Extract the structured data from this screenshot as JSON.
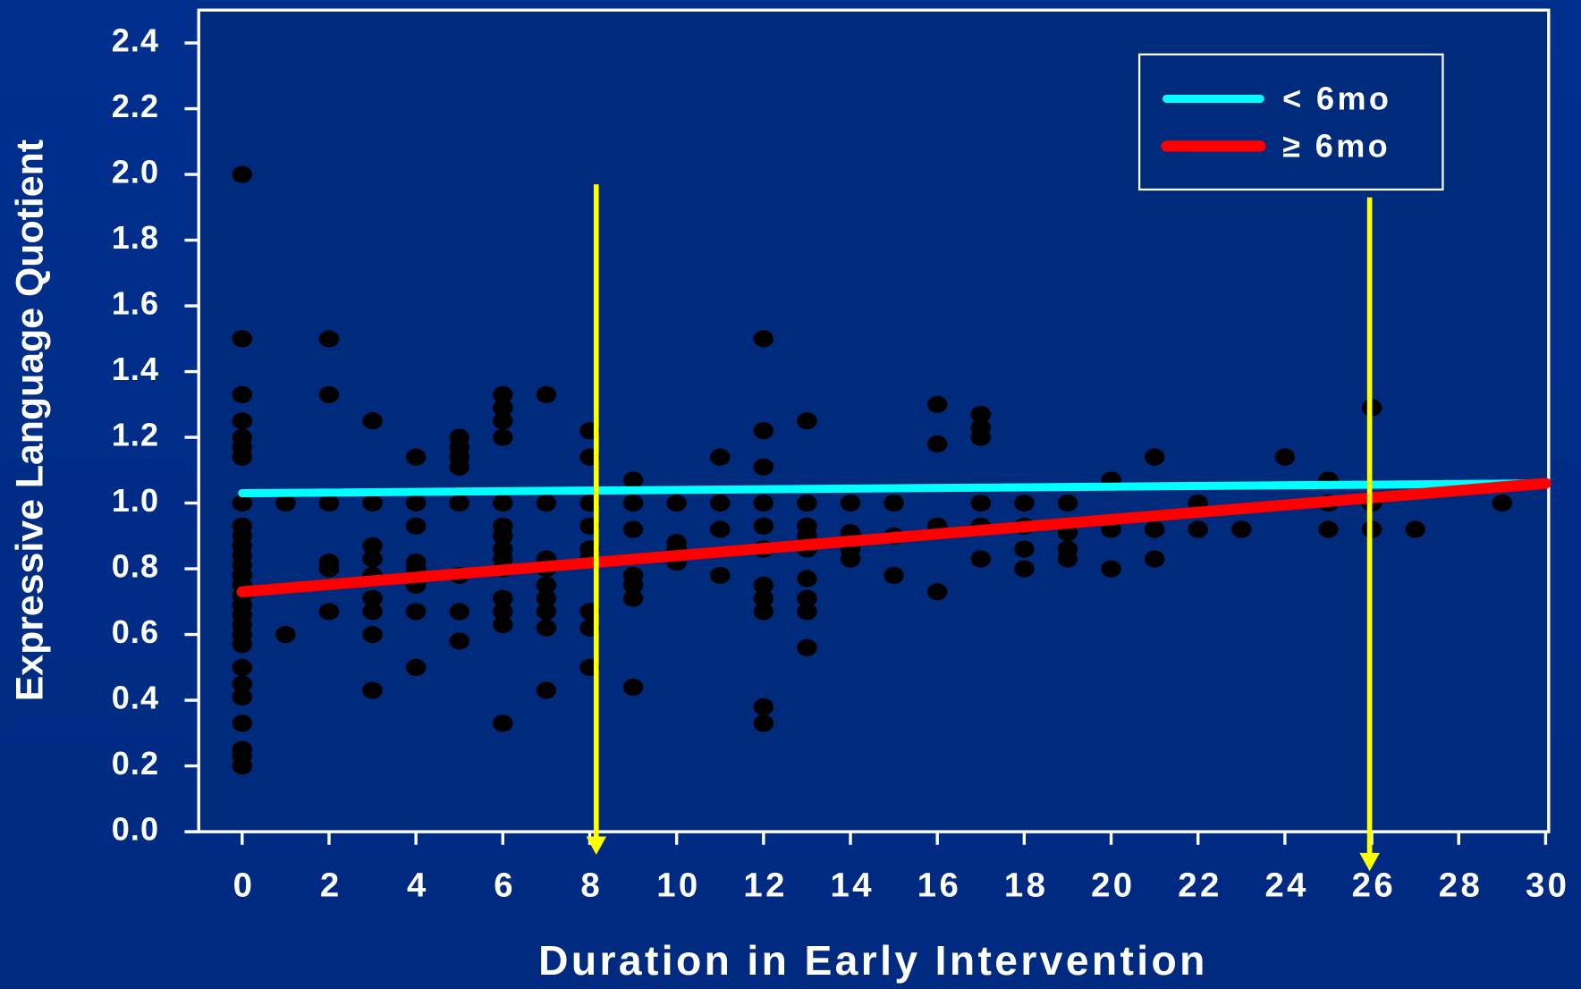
{
  "chart_data": {
    "type": "scatter",
    "x_label": "Duration in Early Intervention",
    "y_label": "Expressive Language Quotient",
    "xlim": [
      -1,
      30.07
    ],
    "ylim": [
      0,
      2.5
    ],
    "xticks": [
      0,
      2,
      4,
      6,
      8,
      10,
      12,
      14,
      16,
      18,
      20,
      22,
      24,
      26,
      28,
      30
    ],
    "yticks": [
      {
        "value": 0,
        "label": "0.0"
      },
      0.2,
      0.4,
      0.6,
      0.8,
      {
        "value": 1,
        "label": "1.0"
      },
      1.2,
      1.4,
      1.6,
      1.8,
      {
        "value": 2,
        "label": "2.0"
      },
      2.2,
      2.4
    ],
    "point_color": "#000000",
    "points": [
      {
        "x": 0,
        "y": [
          2.0,
          1.5,
          1.33,
          1.25,
          1.2,
          1.17,
          1.14,
          1.0,
          0.93,
          0.9,
          0.87,
          0.84,
          0.81,
          0.78,
          0.75,
          0.72,
          0.69,
          0.66,
          0.63,
          0.6,
          0.57,
          0.5,
          0.45,
          0.41,
          0.33,
          0.25,
          0.23,
          0.2
        ]
      },
      {
        "x": 1,
        "y": [
          1.0,
          0.6
        ]
      },
      {
        "x": 2,
        "y": [
          1.5,
          1.33,
          1.0,
          0.82,
          0.8,
          0.67
        ]
      },
      {
        "x": 3,
        "y": [
          1.25,
          1.0,
          0.87,
          0.83,
          0.78,
          0.71,
          0.67,
          0.6,
          0.43
        ]
      },
      {
        "x": 4,
        "y": [
          1.14,
          1.0,
          0.93,
          0.82,
          0.8,
          0.75,
          0.67,
          0.5
        ]
      },
      {
        "x": 5,
        "y": [
          1.2,
          1.17,
          1.14,
          1.11,
          1.0,
          0.78,
          0.67,
          0.58
        ]
      },
      {
        "x": 6,
        "y": [
          1.33,
          1.29,
          1.25,
          1.2,
          1.0,
          0.93,
          0.9,
          0.86,
          0.83,
          0.8,
          0.71,
          0.67,
          0.63,
          0.33
        ]
      },
      {
        "x": 7,
        "y": [
          1.33,
          1.0,
          0.83,
          0.8,
          0.75,
          0.71,
          0.67,
          0.62,
          0.43
        ]
      },
      {
        "x": 8,
        "y": [
          1.22,
          1.14,
          1.0,
          0.93,
          0.86,
          0.83,
          0.67,
          0.62,
          0.5
        ]
      },
      {
        "x": 9,
        "y": [
          1.07,
          1.0,
          0.92,
          0.78,
          0.75,
          0.71,
          0.44
        ]
      },
      {
        "x": 10,
        "y": [
          1.0,
          0.88,
          0.86,
          0.82
        ]
      },
      {
        "x": 11,
        "y": [
          1.14,
          1.0,
          0.92,
          0.78
        ]
      },
      {
        "x": 12,
        "y": [
          1.5,
          1.22,
          1.11,
          1.0,
          0.93,
          0.86,
          0.75,
          0.71,
          0.67,
          0.38,
          0.33
        ]
      },
      {
        "x": 13,
        "y": [
          1.25,
          1.0,
          0.93,
          0.9,
          0.86,
          0.77,
          0.71,
          0.67,
          0.56
        ]
      },
      {
        "x": 14,
        "y": [
          1.0,
          0.91,
          0.86,
          0.83
        ]
      },
      {
        "x": 15,
        "y": [
          1.0,
          0.9,
          0.78
        ]
      },
      {
        "x": 16,
        "y": [
          1.3,
          1.18,
          0.93,
          0.73
        ]
      },
      {
        "x": 17,
        "y": [
          1.27,
          1.23,
          1.2,
          1.0,
          0.93,
          0.83
        ]
      },
      {
        "x": 18,
        "y": [
          1.0,
          0.93,
          0.86,
          0.8
        ]
      },
      {
        "x": 19,
        "y": [
          1.0,
          0.91,
          0.86,
          0.83
        ]
      },
      {
        "x": 20,
        "y": [
          1.07,
          0.92,
          0.8
        ]
      },
      {
        "x": 21,
        "y": [
          1.14,
          0.92,
          0.83
        ]
      },
      {
        "x": 22,
        "y": [
          1.0,
          0.92
        ]
      },
      {
        "x": 23,
        "y": [
          0.92
        ]
      },
      {
        "x": 24,
        "y": [
          1.14
        ]
      },
      {
        "x": 25,
        "y": [
          1.07,
          1.0,
          0.92
        ]
      },
      {
        "x": 26,
        "y": [
          1.29,
          1.0,
          0.92
        ]
      },
      {
        "x": 27,
        "y": [
          0.92
        ]
      },
      {
        "x": 29,
        "y": [
          1.0
        ]
      }
    ],
    "series": [
      {
        "name": "< 6mo",
        "color": "#00ffff",
        "x": [
          0,
          30
        ],
        "values": [
          1.03,
          1.06
        ]
      },
      {
        "name": "≥ 6mo",
        "color": "#ff0000",
        "x": [
          0,
          30
        ],
        "values": [
          0.73,
          1.06
        ]
      }
    ],
    "arrows": [
      {
        "color": "#ffff00",
        "x": 8.15,
        "values": [
          1.97,
          -0.07
        ]
      },
      {
        "color": "#ffff00",
        "x": 25.95,
        "values": [
          1.93,
          -0.12
        ]
      }
    ]
  }
}
